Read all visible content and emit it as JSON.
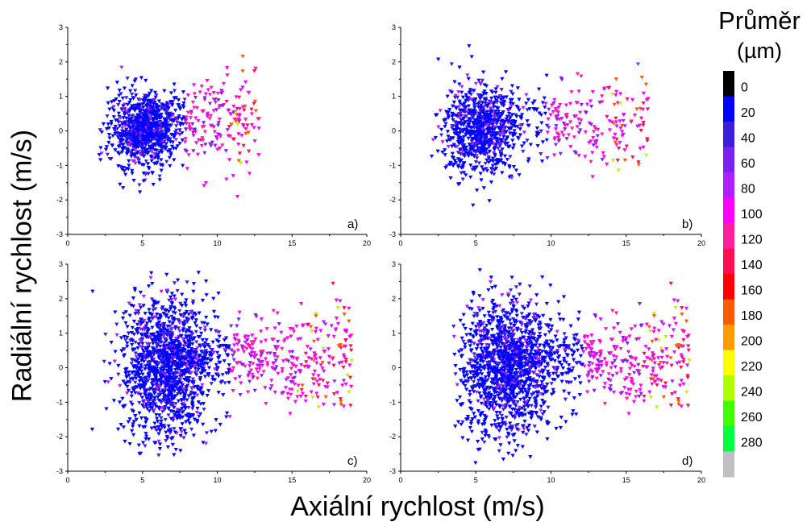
{
  "figure": {
    "ylabel": "Radiální rychlost (m/s)",
    "xlabel": "Axiální rychlost (m/s)",
    "legend": {
      "title": "Průměr",
      "unit": "(µm)",
      "ticks": [
        "0",
        "20",
        "40",
        "60",
        "80",
        "100",
        "120",
        "140",
        "160",
        "180",
        "200",
        "220",
        "240",
        "260",
        "280"
      ],
      "colors": [
        "#000000",
        "#0000ff",
        "#3b1fdc",
        "#7a22ee",
        "#b020ff",
        "#ff00ff",
        "#ff20a0",
        "#ff1050",
        "#ff0000",
        "#ff5a00",
        "#ff9a00",
        "#ffff00",
        "#b0ff00",
        "#40ff00",
        "#00ff40",
        "#c0c0c0"
      ]
    }
  },
  "chart_data": [
    {
      "type": "scatter",
      "panel_label": "a)",
      "xlim": [
        0,
        20
      ],
      "ylim": [
        -3,
        3
      ],
      "xticks": [
        "0",
        "5",
        "10",
        "15",
        "20"
      ],
      "yticks": [
        "-3",
        "-2",
        "-1",
        "0",
        "1",
        "2",
        "3"
      ],
      "marker": "triangle-down",
      "grid": false,
      "series": [
        {
          "x_range": [
            1.8,
            12.8
          ],
          "y_range": [
            -2.4,
            2.2
          ],
          "core_x": 5.0,
          "core_y_spread": 1.1,
          "tail_end_x": 12.8
        }
      ]
    },
    {
      "type": "scatter",
      "panel_label": "b)",
      "xlim": [
        0,
        20
      ],
      "ylim": [
        -3,
        3
      ],
      "xticks": [
        "0",
        "5",
        "10",
        "15",
        "20"
      ],
      "yticks": [
        "-3",
        "-2",
        "-1",
        "0",
        "1",
        "2",
        "3"
      ],
      "marker": "triangle-down",
      "grid": false,
      "series": [
        {
          "x_range": [
            1.5,
            16.5
          ],
          "y_range": [
            -2.3,
            2.5
          ],
          "core_x": 5.2,
          "core_y_spread": 1.3,
          "tail_end_x": 16.5
        }
      ]
    },
    {
      "type": "scatter",
      "panel_label": "c)",
      "xlim": [
        0,
        20
      ],
      "ylim": [
        -3,
        3
      ],
      "xticks": [
        "0",
        "5",
        "10",
        "15",
        "20"
      ],
      "yticks": [
        "-3",
        "-2",
        "-1",
        "0",
        "1",
        "2",
        "3"
      ],
      "marker": "triangle-down",
      "grid": false,
      "series": [
        {
          "x_range": [
            0.8,
            19.0
          ],
          "y_range": [
            -2.6,
            2.8
          ],
          "core_x": 6.5,
          "core_y_spread": 2.1,
          "tail_end_x": 19.0
        }
      ]
    },
    {
      "type": "scatter",
      "panel_label": "d)",
      "xlim": [
        0,
        20
      ],
      "ylim": [
        -3,
        3
      ],
      "xticks": [
        "0",
        "5",
        "10",
        "15",
        "20"
      ],
      "yticks": [
        "-3",
        "-2",
        "-1",
        "0",
        "1",
        "2",
        "3"
      ],
      "marker": "triangle-down",
      "grid": false,
      "series": [
        {
          "x_range": [
            3.5,
            19.2
          ],
          "y_range": [
            -2.9,
            2.9
          ],
          "core_x": 7.0,
          "core_y_spread": 2.0,
          "tail_end_x": 19.2
        }
      ]
    }
  ]
}
